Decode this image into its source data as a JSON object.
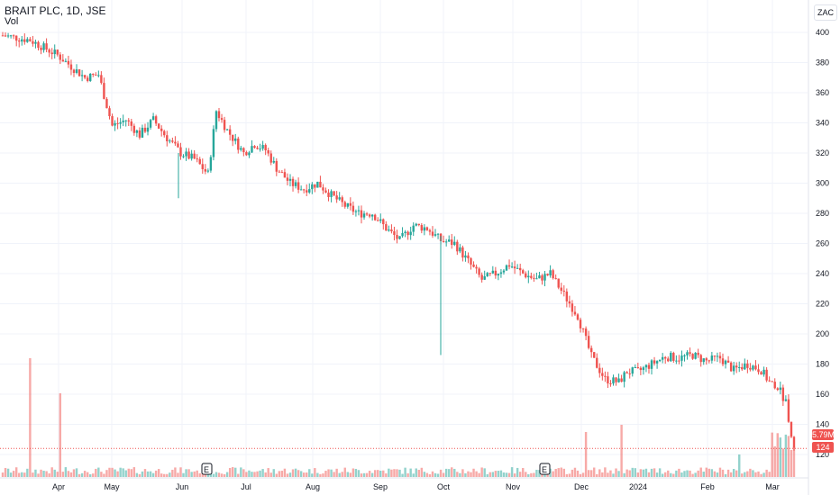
{
  "header": {
    "symbol": "BRAIT PLC, 1D, JSE",
    "volume_label": "Vol",
    "currency": "ZAC"
  },
  "badges": {
    "volume": "5.79M",
    "price": "124",
    "up_color": "#26a69a",
    "down_color": "#ef5350"
  },
  "chart_data": {
    "type": "candlestick",
    "ylim": [
      110,
      410
    ],
    "yticks": [
      120,
      140,
      160,
      180,
      200,
      220,
      240,
      260,
      280,
      300,
      320,
      340,
      360,
      380,
      400
    ],
    "month_labels": [
      "Apr",
      "May",
      "Jun",
      "Jul",
      "Aug",
      "Sep",
      "Oct",
      "Nov",
      "Dec",
      "2024",
      "Feb",
      "Mar"
    ],
    "grid": true,
    "earnings_markers": [
      {
        "month": "Jun",
        "label": "E"
      },
      {
        "month": "Nov",
        "label": "E"
      }
    ],
    "last_price": 124,
    "last_volume": "5.79M",
    "price_path": [
      [
        0,
        398
      ],
      [
        10,
        395
      ],
      [
        20,
        385
      ],
      [
        30,
        370
      ],
      [
        35,
        372
      ],
      [
        40,
        338
      ],
      [
        45,
        342
      ],
      [
        50,
        332
      ],
      [
        55,
        342
      ],
      [
        60,
        330
      ],
      [
        65,
        320
      ],
      [
        70,
        316
      ],
      [
        75,
        306
      ],
      [
        78,
        348
      ],
      [
        82,
        335
      ],
      [
        88,
        320
      ],
      [
        92,
        326
      ],
      [
        96,
        322
      ],
      [
        100,
        310
      ],
      [
        105,
        300
      ],
      [
        110,
        296
      ],
      [
        115,
        300
      ],
      [
        120,
        292
      ],
      [
        125,
        285
      ],
      [
        130,
        280
      ],
      [
        135,
        280
      ],
      [
        140,
        270
      ],
      [
        145,
        262
      ],
      [
        150,
        272
      ],
      [
        155,
        270
      ],
      [
        160,
        262
      ],
      [
        165,
        260
      ],
      [
        170,
        248
      ],
      [
        175,
        236
      ],
      [
        180,
        240
      ],
      [
        185,
        246
      ],
      [
        190,
        240
      ],
      [
        195,
        236
      ],
      [
        200,
        240
      ],
      [
        205,
        226
      ],
      [
        210,
        212
      ],
      [
        215,
        185
      ],
      [
        220,
        170
      ],
      [
        225,
        168
      ],
      [
        228,
        175
      ],
      [
        232,
        175
      ],
      [
        237,
        180
      ],
      [
        242,
        185
      ],
      [
        247,
        184
      ],
      [
        252,
        186
      ],
      [
        257,
        182
      ],
      [
        262,
        184
      ],
      [
        267,
        176
      ],
      [
        272,
        180
      ],
      [
        277,
        176
      ],
      [
        280,
        168
      ],
      [
        283,
        165
      ],
      [
        286,
        155
      ],
      [
        289,
        124
      ]
    ]
  }
}
